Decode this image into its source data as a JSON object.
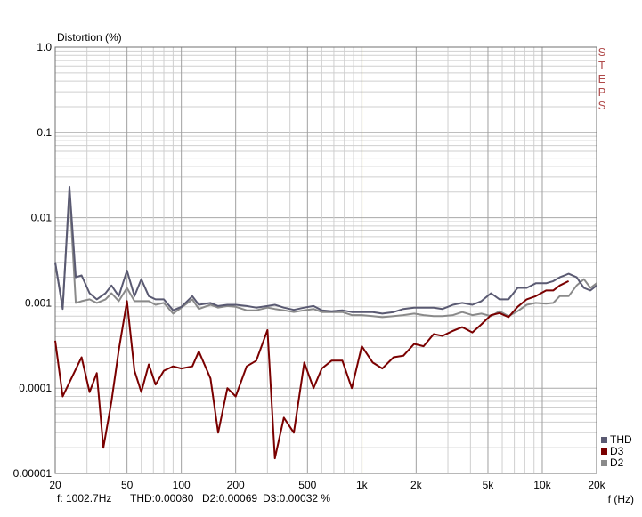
{
  "chart_data": {
    "type": "line",
    "ylabel": "Distortion (%)",
    "xlabel": "f (Hz)",
    "yscale": "log",
    "xscale": "log",
    "ylim": [
      1e-05,
      1.0
    ],
    "xlim": [
      20,
      20000
    ],
    "yticks": [
      {
        "value": 1.0,
        "label": "1.0"
      },
      {
        "value": 0.1,
        "label": "0.1"
      },
      {
        "value": 0.01,
        "label": "0.01"
      },
      {
        "value": 0.001,
        "label": "0.001"
      },
      {
        "value": 0.0001,
        "label": "0.0001"
      },
      {
        "value": 1e-05,
        "label": "0.00001"
      }
    ],
    "xticks": [
      {
        "value": 20,
        "label": "20"
      },
      {
        "value": 50,
        "label": "50"
      },
      {
        "value": 100,
        "label": "100"
      },
      {
        "value": 200,
        "label": "200"
      },
      {
        "value": 500,
        "label": "500"
      },
      {
        "value": 1000,
        "label": "1k"
      },
      {
        "value": 2000,
        "label": "2k"
      },
      {
        "value": 5000,
        "label": "5k"
      },
      {
        "value": 10000,
        "label": "10k"
      },
      {
        "value": 20000,
        "label": "20k"
      }
    ],
    "cursor_x": 1002.7,
    "grid": true,
    "legend_position": "bottom-right",
    "side_label": "STEPS",
    "series": [
      {
        "name": "THD",
        "color": "#5a5a72",
        "points": [
          [
            20,
            0.003
          ],
          [
            22,
            0.00085
          ],
          [
            24,
            0.023
          ],
          [
            26,
            0.002
          ],
          [
            28,
            0.0021
          ],
          [
            31,
            0.0013
          ],
          [
            34,
            0.0011
          ],
          [
            38,
            0.0013
          ],
          [
            41,
            0.0016
          ],
          [
            45,
            0.0012
          ],
          [
            50,
            0.0024
          ],
          [
            55,
            0.0012
          ],
          [
            60,
            0.0019
          ],
          [
            66,
            0.0012
          ],
          [
            72,
            0.0011
          ],
          [
            80,
            0.0011
          ],
          [
            90,
            0.00082
          ],
          [
            100,
            0.0009
          ],
          [
            115,
            0.0012
          ],
          [
            125,
            0.00095
          ],
          [
            145,
            0.001
          ],
          [
            160,
            0.00092
          ],
          [
            180,
            0.00095
          ],
          [
            200,
            0.00095
          ],
          [
            230,
            0.00092
          ],
          [
            260,
            0.00088
          ],
          [
            300,
            0.00092
          ],
          [
            330,
            0.00095
          ],
          [
            370,
            0.00088
          ],
          [
            420,
            0.00083
          ],
          [
            480,
            0.00088
          ],
          [
            540,
            0.00092
          ],
          [
            600,
            0.00082
          ],
          [
            680,
            0.0008
          ],
          [
            780,
            0.00082
          ],
          [
            880,
            0.00078
          ],
          [
            1000,
            0.00078
          ],
          [
            1150,
            0.00078
          ],
          [
            1300,
            0.00075
          ],
          [
            1500,
            0.00078
          ],
          [
            1700,
            0.00085
          ],
          [
            1950,
            0.00088
          ],
          [
            2200,
            0.00088
          ],
          [
            2500,
            0.00088
          ],
          [
            2800,
            0.00085
          ],
          [
            3200,
            0.00095
          ],
          [
            3600,
            0.001
          ],
          [
            4100,
            0.00095
          ],
          [
            4600,
            0.00105
          ],
          [
            5200,
            0.0013
          ],
          [
            5800,
            0.0011
          ],
          [
            6500,
            0.0011
          ],
          [
            7300,
            0.0015
          ],
          [
            8200,
            0.0015
          ],
          [
            9200,
            0.0017
          ],
          [
            10500,
            0.0017
          ],
          [
            11500,
            0.0018
          ],
          [
            12500,
            0.002
          ],
          [
            14000,
            0.0022
          ],
          [
            15500,
            0.002
          ],
          [
            17000,
            0.0015
          ],
          [
            18500,
            0.0014
          ],
          [
            20000,
            0.0016
          ]
        ]
      },
      {
        "name": "D3",
        "color": "#7a0000",
        "points": [
          [
            20,
            0.00036
          ],
          [
            22,
            8e-05
          ],
          [
            25,
            0.00014
          ],
          [
            28,
            0.00023
          ],
          [
            31,
            9e-05
          ],
          [
            34,
            0.00015
          ],
          [
            37,
            2e-05
          ],
          [
            41,
            7e-05
          ],
          [
            45,
            0.00028
          ],
          [
            50,
            0.00105
          ],
          [
            55,
            0.00016
          ],
          [
            60,
            9e-05
          ],
          [
            66,
            0.00019
          ],
          [
            72,
            0.00011
          ],
          [
            80,
            0.00016
          ],
          [
            90,
            0.00018
          ],
          [
            100,
            0.00017
          ],
          [
            115,
            0.00018
          ],
          [
            125,
            0.00027
          ],
          [
            145,
            0.00013
          ],
          [
            160,
            3e-05
          ],
          [
            180,
            0.0001
          ],
          [
            200,
            8e-05
          ],
          [
            230,
            0.00018
          ],
          [
            260,
            0.00021
          ],
          [
            300,
            0.00048
          ],
          [
            330,
            1.5e-05
          ],
          [
            370,
            4.5e-05
          ],
          [
            420,
            3e-05
          ],
          [
            480,
            0.0002
          ],
          [
            540,
            0.0001
          ],
          [
            600,
            0.00017
          ],
          [
            680,
            0.00021
          ],
          [
            780,
            0.00021
          ],
          [
            880,
            0.0001
          ],
          [
            1000,
            0.00031
          ],
          [
            1150,
            0.0002
          ],
          [
            1300,
            0.00017
          ],
          [
            1500,
            0.00023
          ],
          [
            1700,
            0.00024
          ],
          [
            1950,
            0.00033
          ],
          [
            2200,
            0.00031
          ],
          [
            2500,
            0.00043
          ],
          [
            2800,
            0.00041
          ],
          [
            3200,
            0.00047
          ],
          [
            3600,
            0.00052
          ],
          [
            4100,
            0.00045
          ],
          [
            4600,
            0.00056
          ],
          [
            5200,
            0.00072
          ],
          [
            5800,
            0.00076
          ],
          [
            6500,
            0.00068
          ],
          [
            7300,
            0.0009
          ],
          [
            8200,
            0.0011
          ],
          [
            9200,
            0.0012
          ],
          [
            10500,
            0.0014
          ],
          [
            11500,
            0.0014
          ],
          [
            12500,
            0.0016
          ],
          [
            14000,
            0.0018
          ]
        ]
      },
      {
        "name": "D2",
        "color": "#8a8a8a",
        "points": [
          [
            20,
            0.0029
          ],
          [
            22,
            0.0009
          ],
          [
            24,
            0.02
          ],
          [
            26,
            0.001
          ],
          [
            28,
            0.00105
          ],
          [
            31,
            0.0011
          ],
          [
            34,
            0.001
          ],
          [
            38,
            0.0011
          ],
          [
            41,
            0.0013
          ],
          [
            45,
            0.00105
          ],
          [
            50,
            0.0015
          ],
          [
            55,
            0.00105
          ],
          [
            60,
            0.00105
          ],
          [
            66,
            0.00105
          ],
          [
            72,
            0.00095
          ],
          [
            80,
            0.001
          ],
          [
            90,
            0.00075
          ],
          [
            100,
            0.00088
          ],
          [
            115,
            0.0011
          ],
          [
            125,
            0.00085
          ],
          [
            145,
            0.00095
          ],
          [
            160,
            0.00088
          ],
          [
            180,
            0.00092
          ],
          [
            200,
            0.0009
          ],
          [
            230,
            0.00082
          ],
          [
            260,
            0.00082
          ],
          [
            300,
            0.00088
          ],
          [
            330,
            0.00085
          ],
          [
            370,
            0.00082
          ],
          [
            420,
            0.00078
          ],
          [
            480,
            0.00082
          ],
          [
            540,
            0.00085
          ],
          [
            600,
            0.00078
          ],
          [
            680,
            0.00078
          ],
          [
            780,
            0.00078
          ],
          [
            880,
            0.00072
          ],
          [
            1000,
            0.00072
          ],
          [
            1150,
            0.0007
          ],
          [
            1300,
            0.00068
          ],
          [
            1500,
            0.0007
          ],
          [
            1700,
            0.00072
          ],
          [
            1950,
            0.00075
          ],
          [
            2200,
            0.00072
          ],
          [
            2500,
            0.0007
          ],
          [
            2800,
            0.0007
          ],
          [
            3200,
            0.00072
          ],
          [
            3600,
            0.00078
          ],
          [
            4100,
            0.00072
          ],
          [
            4600,
            0.00075
          ],
          [
            5200,
            0.0007
          ],
          [
            5800,
            0.0008
          ],
          [
            6500,
            0.0007
          ],
          [
            7300,
            0.0008
          ],
          [
            8200,
            0.00095
          ],
          [
            9200,
            0.001
          ],
          [
            10500,
            0.00098
          ],
          [
            11500,
            0.001
          ],
          [
            12500,
            0.0012
          ],
          [
            14000,
            0.0012
          ],
          [
            15500,
            0.0016
          ],
          [
            17000,
            0.0019
          ],
          [
            18500,
            0.0015
          ],
          [
            20000,
            0.0017
          ]
        ]
      }
    ]
  },
  "readout": {
    "freq": "f: 1002.7Hz",
    "thd": "THD:0.00080",
    "d2": "D2:0.00069",
    "d3": "D3:0.00032 %"
  }
}
